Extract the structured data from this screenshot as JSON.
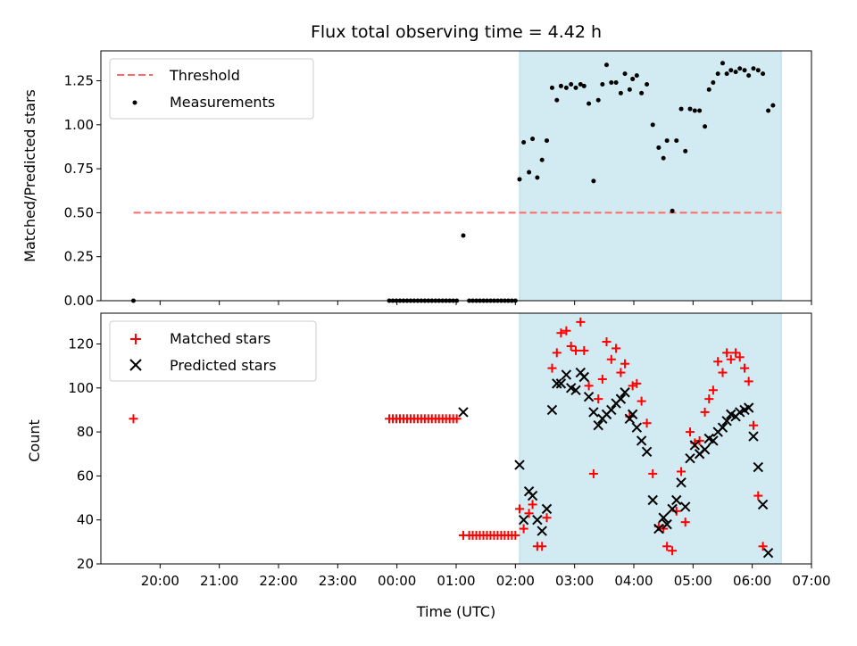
{
  "chart_data": {
    "title": "Flux total observing time = 4.42 h",
    "type": "scatter",
    "x_unit": "hours",
    "xlabel": "Time (UTC)",
    "x_ticks": [
      {
        "v": 19.0,
        "label": "20:00"
      },
      {
        "v": 20.0,
        "label": "21:00"
      },
      {
        "v": 21.0,
        "label": "22:00"
      },
      {
        "v": 22.0,
        "label": "23:00"
      },
      {
        "v": 23.0,
        "label": "00:00"
      },
      {
        "v": 24.0,
        "label": "01:00"
      },
      {
        "v": 25.0,
        "label": "02:00"
      },
      {
        "v": 26.0,
        "label": "03:00"
      },
      {
        "v": 27.0,
        "label": "04:00"
      },
      {
        "v": 28.0,
        "label": "05:00"
      },
      {
        "v": 29.0,
        "label": "06:00"
      },
      {
        "v": 30.0,
        "label": "07:00"
      }
    ],
    "xlim": [
      18.0,
      30.0
    ],
    "observing_window": [
      25.07,
      29.49
    ],
    "window_color": "#add8e6",
    "panels": [
      {
        "ylabel": "Matched/Predicted stars",
        "ylim": [
          0,
          1.42
        ],
        "yticks": [
          "0.00",
          "0.25",
          "0.50",
          "0.75",
          "1.00",
          "1.25"
        ],
        "legend": "upper-left",
        "threshold": {
          "name": "Threshold",
          "y": 0.5,
          "x_range": [
            18.55,
            29.49
          ],
          "color": "#ff6b6b"
        },
        "measurements": {
          "name": "Measurements",
          "color": "#000000",
          "points": [
            [
              18.55,
              0.0
            ],
            [
              22.87,
              0.0
            ],
            [
              22.93,
              0.0
            ],
            [
              22.99,
              0.0
            ],
            [
              23.05,
              0.0
            ],
            [
              23.11,
              0.0
            ],
            [
              23.17,
              0.0
            ],
            [
              23.23,
              0.0
            ],
            [
              23.29,
              0.0
            ],
            [
              23.35,
              0.0
            ],
            [
              23.41,
              0.0
            ],
            [
              23.47,
              0.0
            ],
            [
              23.53,
              0.0
            ],
            [
              23.59,
              0.0
            ],
            [
              23.65,
              0.0
            ],
            [
              23.71,
              0.0
            ],
            [
              23.77,
              0.0
            ],
            [
              23.83,
              0.0
            ],
            [
              23.89,
              0.0
            ],
            [
              23.95,
              0.0
            ],
            [
              24.01,
              0.0
            ],
            [
              24.12,
              0.37
            ],
            [
              24.22,
              0.0
            ],
            [
              24.28,
              0.0
            ],
            [
              24.34,
              0.0
            ],
            [
              24.4,
              0.0
            ],
            [
              24.46,
              0.0
            ],
            [
              24.52,
              0.0
            ],
            [
              24.58,
              0.0
            ],
            [
              24.64,
              0.0
            ],
            [
              24.7,
              0.0
            ],
            [
              24.76,
              0.0
            ],
            [
              24.82,
              0.0
            ],
            [
              24.88,
              0.0
            ],
            [
              24.94,
              0.0
            ],
            [
              25.0,
              0.0
            ],
            [
              25.07,
              0.69
            ],
            [
              25.14,
              0.9
            ],
            [
              25.23,
              0.73
            ],
            [
              25.29,
              0.92
            ],
            [
              25.37,
              0.7
            ],
            [
              25.45,
              0.8
            ],
            [
              25.53,
              0.91
            ],
            [
              25.62,
              1.21
            ],
            [
              25.7,
              1.14
            ],
            [
              25.77,
              1.22
            ],
            [
              25.86,
              1.21
            ],
            [
              25.94,
              1.23
            ],
            [
              26.02,
              1.21
            ],
            [
              26.1,
              1.23
            ],
            [
              26.16,
              1.22
            ],
            [
              26.24,
              1.12
            ],
            [
              26.32,
              0.68
            ],
            [
              26.4,
              1.14
            ],
            [
              26.47,
              1.23
            ],
            [
              26.54,
              1.34
            ],
            [
              26.62,
              1.24
            ],
            [
              26.7,
              1.24
            ],
            [
              26.78,
              1.18
            ],
            [
              26.85,
              1.29
            ],
            [
              26.93,
              1.2
            ],
            [
              26.98,
              1.26
            ],
            [
              27.05,
              1.28
            ],
            [
              27.13,
              1.18
            ],
            [
              27.22,
              1.23
            ],
            [
              27.32,
              1.0
            ],
            [
              27.42,
              0.87
            ],
            [
              27.5,
              0.81
            ],
            [
              27.56,
              0.91
            ],
            [
              27.65,
              0.51
            ],
            [
              27.72,
              0.91
            ],
            [
              27.8,
              1.09
            ],
            [
              27.87,
              0.85
            ],
            [
              27.95,
              1.09
            ],
            [
              28.03,
              1.08
            ],
            [
              28.11,
              1.08
            ],
            [
              28.2,
              0.99
            ],
            [
              28.27,
              1.2
            ],
            [
              28.34,
              1.24
            ],
            [
              28.42,
              1.29
            ],
            [
              28.5,
              1.35
            ],
            [
              28.57,
              1.29
            ],
            [
              28.64,
              1.31
            ],
            [
              28.72,
              1.3
            ],
            [
              28.79,
              1.32
            ],
            [
              28.87,
              1.31
            ],
            [
              28.94,
              1.28
            ],
            [
              29.02,
              1.32
            ],
            [
              29.1,
              1.31
            ],
            [
              29.18,
              1.29
            ],
            [
              29.27,
              1.08
            ],
            [
              29.35,
              1.11
            ]
          ]
        }
      },
      {
        "ylabel": "Count",
        "ylim": [
          20,
          134
        ],
        "yticks": [
          "20",
          "40",
          "60",
          "80",
          "100",
          "120"
        ],
        "legend": "upper-left",
        "matched": {
          "name": "Matched stars",
          "color": "#ff0000",
          "points": [
            [
              18.55,
              86
            ],
            [
              22.87,
              86
            ],
            [
              22.93,
              86
            ],
            [
              22.99,
              86
            ],
            [
              23.05,
              86
            ],
            [
              23.11,
              86
            ],
            [
              23.17,
              86
            ],
            [
              23.23,
              86
            ],
            [
              23.29,
              86
            ],
            [
              23.35,
              86
            ],
            [
              23.41,
              86
            ],
            [
              23.47,
              86
            ],
            [
              23.53,
              86
            ],
            [
              23.59,
              86
            ],
            [
              23.65,
              86
            ],
            [
              23.71,
              86
            ],
            [
              23.77,
              86
            ],
            [
              23.83,
              86
            ],
            [
              23.89,
              86
            ],
            [
              23.95,
              86
            ],
            [
              24.01,
              86
            ],
            [
              24.12,
              33
            ],
            [
              24.22,
              33
            ],
            [
              24.28,
              33
            ],
            [
              24.34,
              33
            ],
            [
              24.4,
              33
            ],
            [
              24.46,
              33
            ],
            [
              24.52,
              33
            ],
            [
              24.58,
              33
            ],
            [
              24.64,
              33
            ],
            [
              24.7,
              33
            ],
            [
              24.76,
              33
            ],
            [
              24.82,
              33
            ],
            [
              24.88,
              33
            ],
            [
              24.94,
              33
            ],
            [
              25.0,
              33
            ],
            [
              25.07,
              45
            ],
            [
              25.14,
              36
            ],
            [
              25.23,
              43
            ],
            [
              25.29,
              47
            ],
            [
              25.37,
              28
            ],
            [
              25.45,
              28
            ],
            [
              25.53,
              41
            ],
            [
              25.62,
              109
            ],
            [
              25.7,
              116
            ],
            [
              25.77,
              125
            ],
            [
              25.86,
              126
            ],
            [
              25.94,
              119
            ],
            [
              26.02,
              117
            ],
            [
              26.1,
              130
            ],
            [
              26.16,
              117
            ],
            [
              26.24,
              101
            ],
            [
              26.32,
              61
            ],
            [
              26.4,
              95
            ],
            [
              26.47,
              104
            ],
            [
              26.54,
              121
            ],
            [
              26.62,
              113
            ],
            [
              26.7,
              118
            ],
            [
              26.78,
              107
            ],
            [
              26.85,
              111
            ],
            [
              26.93,
              87
            ],
            [
              26.98,
              101
            ],
            [
              27.05,
              102
            ],
            [
              27.13,
              94
            ],
            [
              27.22,
              84
            ],
            [
              27.32,
              61
            ],
            [
              27.42,
              37
            ],
            [
              27.5,
              36
            ],
            [
              27.56,
              28
            ],
            [
              27.65,
              26
            ],
            [
              27.72,
              44
            ],
            [
              27.8,
              62
            ],
            [
              27.87,
              39
            ],
            [
              27.95,
              80
            ],
            [
              28.03,
              75
            ],
            [
              28.11,
              76
            ],
            [
              28.2,
              89
            ],
            [
              28.27,
              95
            ],
            [
              28.34,
              99
            ],
            [
              28.42,
              112
            ],
            [
              28.5,
              107
            ],
            [
              28.57,
              116
            ],
            [
              28.64,
              113
            ],
            [
              28.72,
              116
            ],
            [
              28.79,
              114
            ],
            [
              28.87,
              109
            ],
            [
              28.94,
              103
            ],
            [
              29.02,
              83
            ],
            [
              29.1,
              51
            ],
            [
              29.18,
              28
            ]
          ]
        },
        "predicted": {
          "name": "Predicted stars",
          "color": "#000000",
          "points": [
            [
              24.12,
              89
            ],
            [
              25.07,
              65
            ],
            [
              25.14,
              40
            ],
            [
              25.23,
              53
            ],
            [
              25.29,
              51
            ],
            [
              25.37,
              40
            ],
            [
              25.45,
              35
            ],
            [
              25.53,
              45
            ],
            [
              25.62,
              90
            ],
            [
              25.7,
              102
            ],
            [
              25.77,
              102
            ],
            [
              25.86,
              106
            ],
            [
              25.94,
              100
            ],
            [
              26.02,
              99
            ],
            [
              26.1,
              107
            ],
            [
              26.16,
              105
            ],
            [
              26.24,
              96
            ],
            [
              26.32,
              89
            ],
            [
              26.4,
              83
            ],
            [
              26.47,
              86
            ],
            [
              26.54,
              88
            ],
            [
              26.62,
              90
            ],
            [
              26.7,
              93
            ],
            [
              26.78,
              95
            ],
            [
              26.85,
              98
            ],
            [
              26.93,
              86
            ],
            [
              26.98,
              88
            ],
            [
              27.05,
              82
            ],
            [
              27.13,
              76
            ],
            [
              27.22,
              71
            ],
            [
              27.32,
              49
            ],
            [
              27.42,
              36
            ],
            [
              27.5,
              41
            ],
            [
              27.56,
              38
            ],
            [
              27.65,
              45
            ],
            [
              27.72,
              49
            ],
            [
              27.8,
              57
            ],
            [
              27.87,
              46
            ],
            [
              27.95,
              68
            ],
            [
              28.03,
              74
            ],
            [
              28.11,
              70
            ],
            [
              28.2,
              72
            ],
            [
              28.27,
              77
            ],
            [
              28.34,
              76
            ],
            [
              28.42,
              80
            ],
            [
              28.5,
              82
            ],
            [
              28.57,
              85
            ],
            [
              28.64,
              88
            ],
            [
              28.72,
              87
            ],
            [
              28.79,
              89
            ],
            [
              28.87,
              90
            ],
            [
              28.94,
              91
            ],
            [
              29.02,
              78
            ],
            [
              29.1,
              64
            ],
            [
              29.18,
              47
            ],
            [
              29.27,
              25
            ]
          ]
        }
      }
    ]
  }
}
